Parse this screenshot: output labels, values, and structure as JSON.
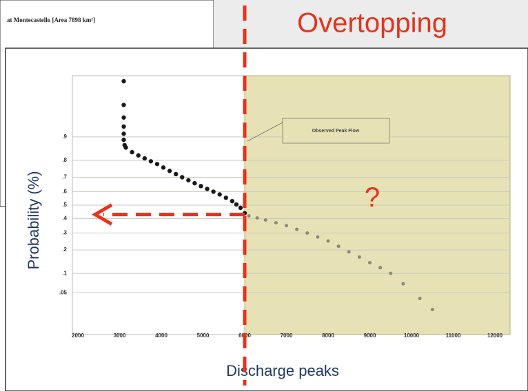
{
  "chart_data": {
    "type": "scatter",
    "title": "Overtopping",
    "background_title": "at Montecastello [Area 7898 km²]",
    "xlabel": "Discharge peaks",
    "ylabel": "Probability (%)",
    "annotation": "Observed Peak Flow",
    "question_mark": "?",
    "threshold": 6000,
    "threshold_probability": 0.43,
    "yscale": "probability",
    "grid": true,
    "xlim": [
      2000,
      12000
    ],
    "ylim": [
      0.01,
      0.99
    ],
    "xticks": [
      2000,
      3000,
      4000,
      5000,
      6000,
      7000,
      8000,
      9000,
      10000,
      11000,
      12000
    ],
    "yticks": [
      {
        "value": 0.05,
        "label": ".05"
      },
      {
        "value": 0.1,
        "label": ".1"
      },
      {
        "value": 0.2,
        "label": ".2"
      },
      {
        "value": 0.3,
        "label": ".3"
      },
      {
        "value": 0.4,
        "label": ".4"
      },
      {
        "value": 0.5,
        "label": ".5"
      },
      {
        "value": 0.6,
        "label": ".6"
      },
      {
        "value": 0.7,
        "label": ".7"
      },
      {
        "value": 0.8,
        "label": ".8"
      },
      {
        "value": 0.9,
        "label": ".9"
      }
    ],
    "series": [
      {
        "color": "#1a1a1a",
        "x": [
          3100,
          3100,
          3100,
          3100,
          3100,
          3100,
          3120,
          3150,
          3300,
          3450,
          3600,
          3750,
          3900,
          4050,
          4200,
          4350,
          4500,
          4650,
          4800,
          4950,
          5100,
          5250,
          5400,
          5550,
          5700,
          5800,
          5900,
          6000
        ],
        "values": [
          0.99,
          0.97,
          0.95,
          0.93,
          0.91,
          0.89,
          0.87,
          0.86,
          0.84,
          0.825,
          0.81,
          0.795,
          0.78,
          0.76,
          0.74,
          0.72,
          0.7,
          0.68,
          0.66,
          0.64,
          0.62,
          0.6,
          0.58,
          0.555,
          0.53,
          0.505,
          0.48,
          0.44
        ]
      },
      {
        "color": "#8a8a7a",
        "x": [
          6100,
          6300,
          6500,
          6750,
          7000,
          7250,
          7500,
          7750,
          8000,
          8250,
          8500,
          8750,
          9000,
          9250,
          9500,
          9800,
          10200,
          10500
        ],
        "values": [
          0.42,
          0.405,
          0.39,
          0.37,
          0.35,
          0.325,
          0.3,
          0.275,
          0.25,
          0.22,
          0.19,
          0.165,
          0.14,
          0.12,
          0.1,
          0.07,
          0.04,
          0.025
        ]
      }
    ]
  }
}
